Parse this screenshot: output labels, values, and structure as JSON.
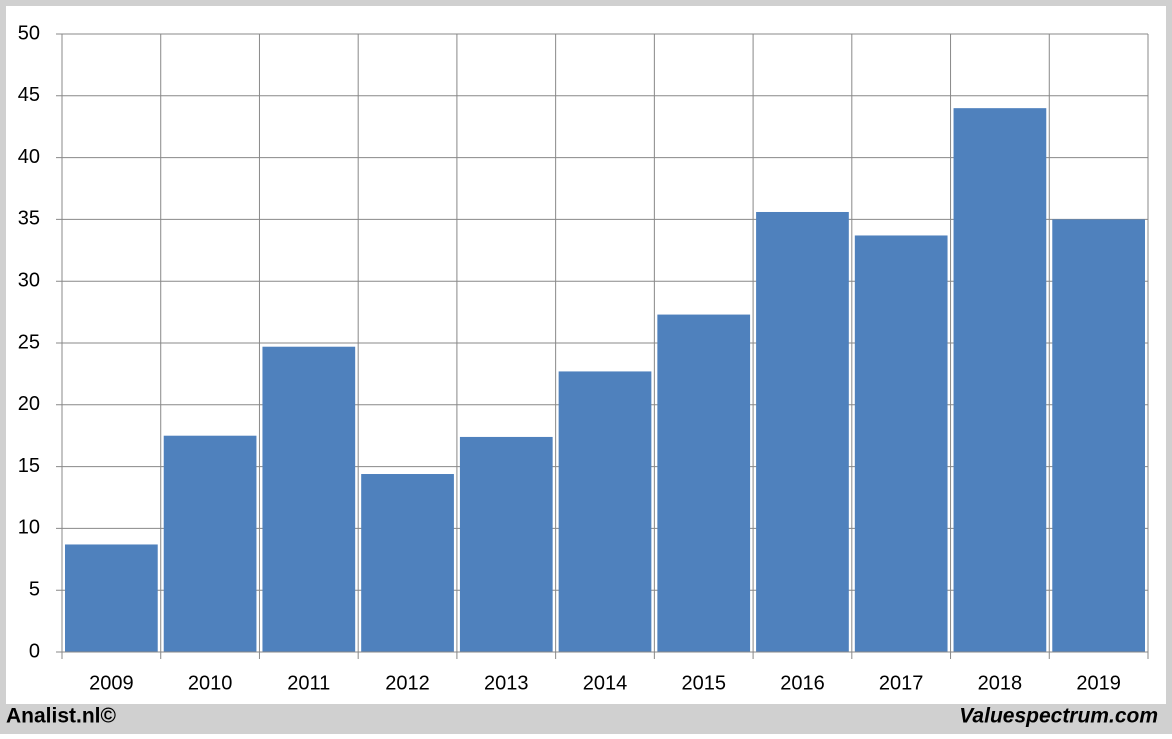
{
  "chart_data": {
    "type": "bar",
    "categories": [
      "2009",
      "2010",
      "2011",
      "2012",
      "2013",
      "2014",
      "2015",
      "2016",
      "2017",
      "2018",
      "2019"
    ],
    "values": [
      8.7,
      17.5,
      24.7,
      14.4,
      17.4,
      22.7,
      27.3,
      35.6,
      33.7,
      44.0,
      35.0
    ],
    "color": "#4f81bd",
    "ylim": [
      0,
      50
    ],
    "yticks": [
      0,
      5,
      10,
      15,
      20,
      25,
      30,
      35,
      40,
      45,
      50
    ],
    "grid": true
  },
  "footer": {
    "left": "Analist.nl©",
    "right": "Valuespectrum.com"
  }
}
